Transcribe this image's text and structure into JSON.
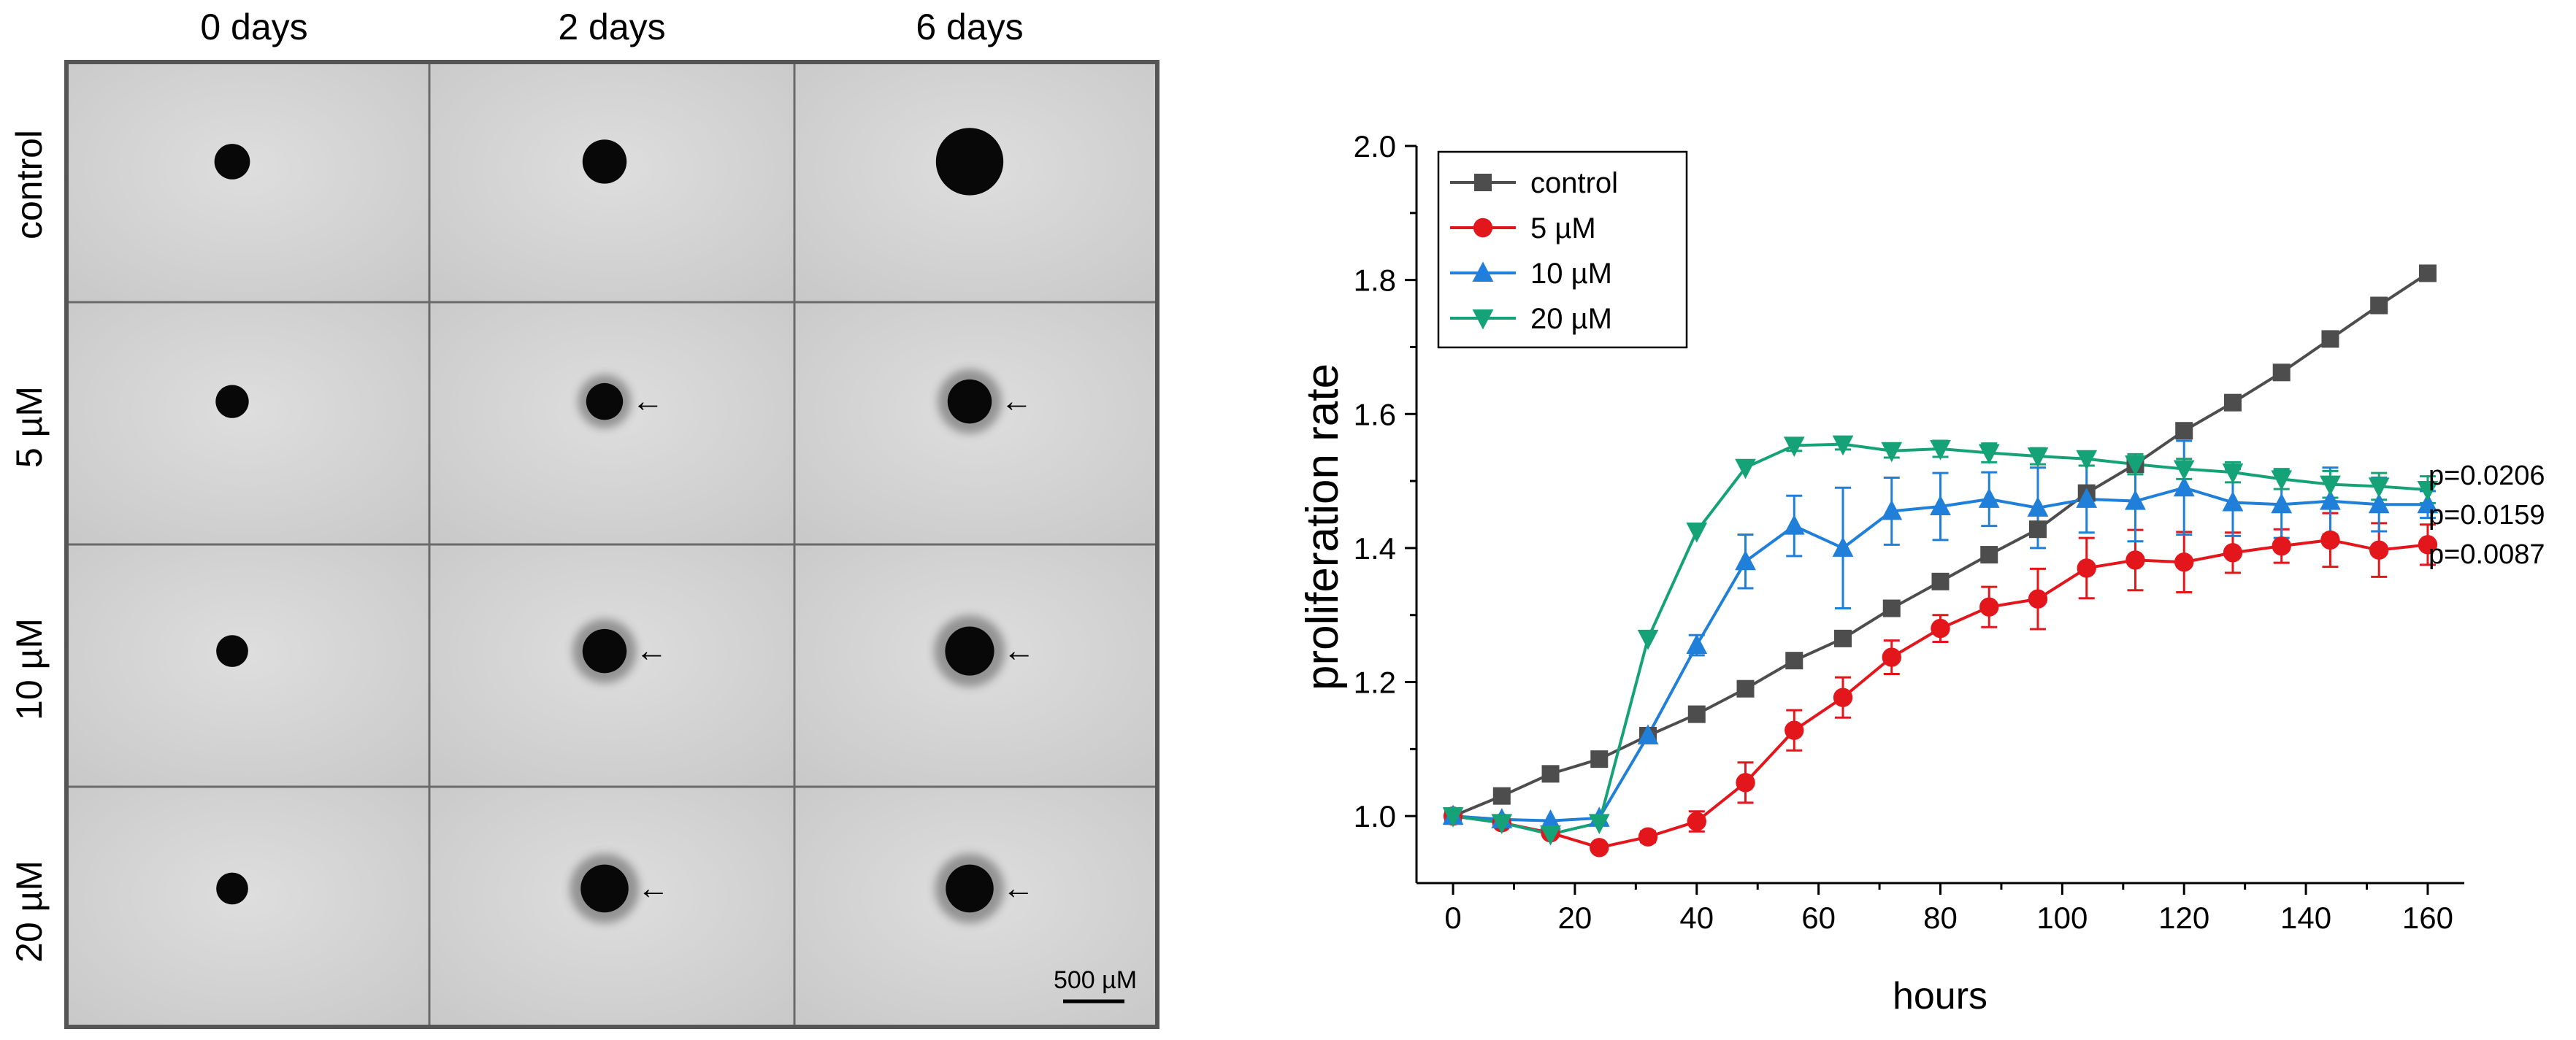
{
  "micrograph_panel": {
    "column_titles": [
      "0 days",
      "2 days",
      "6 days"
    ],
    "row_labels": [
      "control",
      "5 µM",
      "10 µM",
      "20 µM"
    ],
    "scale_bar_label": "500 µM",
    "arrow_marker": "←",
    "cells": [
      {
        "condition": "control",
        "day": 0,
        "spheroid_diameter_um": 290,
        "arrow": false
      },
      {
        "condition": "control",
        "day": 2,
        "spheroid_diameter_um": 360,
        "arrow": false
      },
      {
        "condition": "control",
        "day": 6,
        "spheroid_diameter_um": 550,
        "arrow": false
      },
      {
        "condition": "5 µM",
        "day": 0,
        "spheroid_diameter_um": 270,
        "arrow": false
      },
      {
        "condition": "5 µM",
        "day": 2,
        "spheroid_diameter_um": 300,
        "arrow": true
      },
      {
        "condition": "5 µM",
        "day": 6,
        "spheroid_diameter_um": 360,
        "arrow": true
      },
      {
        "condition": "10 µM",
        "day": 0,
        "spheroid_diameter_um": 260,
        "arrow": false
      },
      {
        "condition": "10 µM",
        "day": 2,
        "spheroid_diameter_um": 360,
        "arrow": true
      },
      {
        "condition": "10 µM",
        "day": 6,
        "spheroid_diameter_um": 400,
        "arrow": true
      },
      {
        "condition": "20 µM",
        "day": 0,
        "spheroid_diameter_um": 260,
        "arrow": false
      },
      {
        "condition": "20 µM",
        "day": 2,
        "spheroid_diameter_um": 390,
        "arrow": true
      },
      {
        "condition": "20 µM",
        "day": 6,
        "spheroid_diameter_um": 390,
        "arrow": true
      }
    ]
  },
  "chart_data": {
    "type": "line",
    "title": "",
    "xlabel": "hours",
    "ylabel": "proliferation rate",
    "xlim": [
      -6,
      166
    ],
    "ylim": [
      0.9,
      2.0
    ],
    "xticks": [
      0,
      20,
      40,
      60,
      80,
      100,
      120,
      140,
      160
    ],
    "yticks": [
      1.0,
      1.2,
      1.4,
      1.6,
      1.8,
      2.0
    ],
    "xtick_labels": [
      "0",
      "20",
      "40",
      "60",
      "80",
      "100",
      "120",
      "140",
      "160"
    ],
    "ytick_labels": [
      "1.0",
      "1.2",
      "1.4",
      "1.6",
      "1.8",
      "2.0"
    ],
    "legend_position": "top-left",
    "series": [
      {
        "name": "control",
        "color": "#4d4d4d",
        "marker": "square",
        "x": [
          0,
          8,
          16,
          24,
          32,
          40,
          48,
          56,
          64,
          72,
          80,
          88,
          96,
          104,
          112,
          120,
          128,
          136,
          144,
          152,
          160
        ],
        "values": [
          1.0,
          1.03,
          1.063,
          1.085,
          1.12,
          1.152,
          1.19,
          1.232,
          1.265,
          1.31,
          1.35,
          1.39,
          1.428,
          1.482,
          1.525,
          1.575,
          1.617,
          1.662,
          1.712,
          1.762,
          1.81
        ],
        "errors": []
      },
      {
        "name": "5 µM",
        "color": "#e3161c",
        "marker": "circle",
        "x": [
          0,
          8,
          16,
          24,
          32,
          40,
          48,
          56,
          64,
          72,
          80,
          88,
          96,
          104,
          112,
          120,
          128,
          136,
          144,
          152,
          160
        ],
        "values": [
          1.0,
          0.99,
          0.975,
          0.953,
          0.969,
          0.992,
          1.05,
          1.128,
          1.177,
          1.237,
          1.28,
          1.312,
          1.324,
          1.37,
          1.382,
          1.379,
          1.393,
          1.403,
          1.412,
          1.397,
          1.405
        ],
        "errors": [
          0,
          0,
          0,
          0,
          0.008,
          0.015,
          0.03,
          0.03,
          0.03,
          0.025,
          0.02,
          0.03,
          0.045,
          0.045,
          0.045,
          0.045,
          0.03,
          0.025,
          0.04,
          0.04,
          0.03
        ]
      },
      {
        "name": "10 µM",
        "color": "#1f7fd9",
        "marker": "triangle-up",
        "x": [
          0,
          8,
          16,
          24,
          32,
          40,
          48,
          56,
          64,
          72,
          80,
          88,
          96,
          104,
          112,
          120,
          128,
          136,
          144,
          152,
          160
        ],
        "values": [
          1.0,
          0.995,
          0.993,
          0.997,
          1.12,
          1.255,
          1.38,
          1.433,
          1.4,
          1.455,
          1.462,
          1.473,
          1.46,
          1.473,
          1.47,
          1.49,
          1.468,
          1.465,
          1.47,
          1.465,
          1.465
        ],
        "errors": [
          0,
          0,
          0,
          0,
          0.008,
          0.015,
          0.04,
          0.045,
          0.09,
          0.05,
          0.05,
          0.04,
          0.06,
          0.05,
          0.06,
          0.07,
          0.05,
          0.05,
          0.05,
          0.04,
          0.02
        ]
      },
      {
        "name": "20 µM",
        "color": "#16a277",
        "marker": "triangle-down",
        "x": [
          0,
          8,
          16,
          24,
          32,
          40,
          48,
          56,
          64,
          72,
          80,
          88,
          96,
          104,
          112,
          120,
          128,
          136,
          144,
          152,
          160
        ],
        "values": [
          1.0,
          0.99,
          0.973,
          0.99,
          1.265,
          1.425,
          1.52,
          1.553,
          1.555,
          1.545,
          1.548,
          1.542,
          1.537,
          1.533,
          1.525,
          1.518,
          1.513,
          1.503,
          1.495,
          1.492,
          1.487
        ],
        "errors": [
          0,
          0,
          0,
          0,
          0,
          0,
          0,
          0.008,
          0.008,
          0.01,
          0.012,
          0.014,
          0.012,
          0.01,
          0.015,
          0.015,
          0.015,
          0.015,
          0.02,
          0.02,
          0.02
        ]
      }
    ],
    "annotations": [
      "p=0.0206",
      "p=0.0159",
      "p=0.0087"
    ]
  }
}
